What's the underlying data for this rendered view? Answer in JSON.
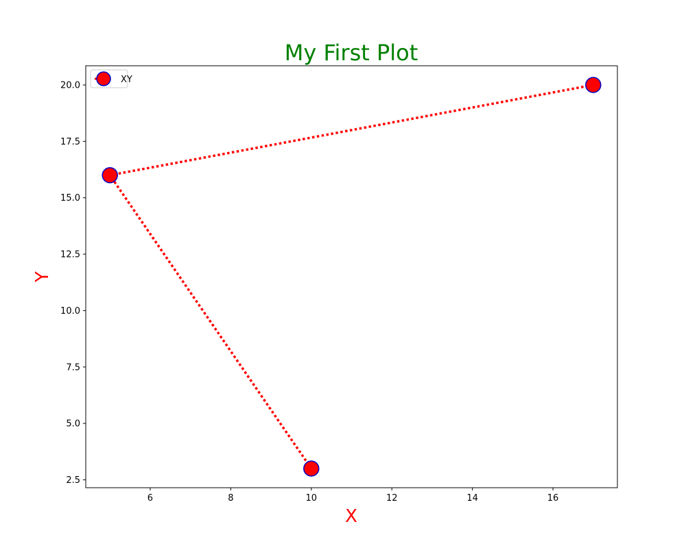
{
  "chart_data": {
    "type": "line",
    "title": "My First Plot",
    "xlabel": "X",
    "ylabel": "Y",
    "xlim": [
      4.4,
      17.6
    ],
    "ylim": [
      2.15,
      20.85
    ],
    "xticks": [
      6,
      8,
      10,
      12,
      14,
      16
    ],
    "xtick_labels": [
      "6",
      "8",
      "10",
      "12",
      "14",
      "16"
    ],
    "yticks": [
      2.5,
      5.0,
      7.5,
      10.0,
      12.5,
      15.0,
      17.5,
      20.0
    ],
    "ytick_labels": [
      "2.5",
      "5.0",
      "7.5",
      "10.0",
      "12.5",
      "15.0",
      "17.5",
      "20.0"
    ],
    "grid": false,
    "legend_position": "top-left",
    "series": [
      {
        "name": "XY",
        "x": [
          10,
          5,
          17
        ],
        "y": [
          3,
          16,
          20
        ],
        "line_style": "dotted",
        "line_color": "#ff0000",
        "marker": "circle",
        "marker_face_color": "#ff0000",
        "marker_edge_color": "#0000cc"
      }
    ],
    "title_color": "#008000",
    "label_color": "#ff0000"
  }
}
